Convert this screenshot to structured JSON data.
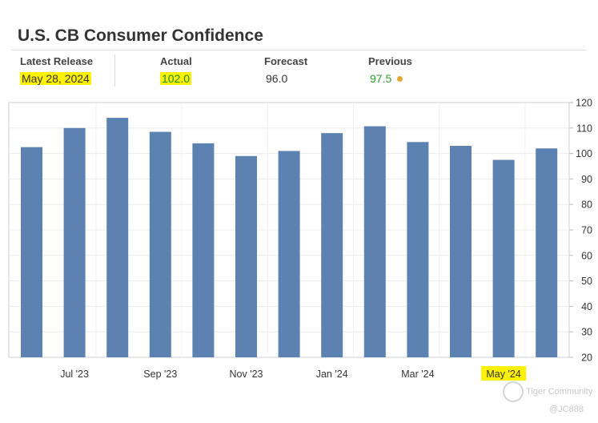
{
  "title": "U.S. CB Consumer Confidence",
  "stats": {
    "latest_release_label": "Latest Release",
    "latest_release_value": "May 28, 2024",
    "actual_label": "Actual",
    "actual_value": "102.0",
    "forecast_label": "Forecast",
    "forecast_value": "96.0",
    "previous_label": "Previous",
    "previous_value": "97.5"
  },
  "colors": {
    "bar": "#5b82b0",
    "highlight": "#fff200",
    "previous_value": "#2e9e2e",
    "previous_dot": "#e0a830"
  },
  "watermark": {
    "brand": "Tiger Community",
    "handle": "@JC888"
  },
  "chart_data": {
    "type": "bar",
    "values": [
      102.5,
      110,
      114,
      108.5,
      104,
      99,
      101,
      108,
      110.7,
      104.5,
      103,
      97.5,
      102
    ],
    "x_tick_labels": [
      {
        "index": 1,
        "label": "Jul '23"
      },
      {
        "index": 3,
        "label": "Sep '23"
      },
      {
        "index": 5,
        "label": "Nov '23"
      },
      {
        "index": 7,
        "label": "Jan '24"
      },
      {
        "index": 9,
        "label": "Mar '24"
      },
      {
        "index": 11,
        "label": "May '24"
      }
    ],
    "highlighted_tick_index": 11,
    "ylim": [
      20,
      120
    ],
    "yticks": [
      20,
      30,
      40,
      50,
      60,
      70,
      80,
      90,
      100,
      110,
      120
    ],
    "y_axis_side": "right",
    "grid": true
  }
}
